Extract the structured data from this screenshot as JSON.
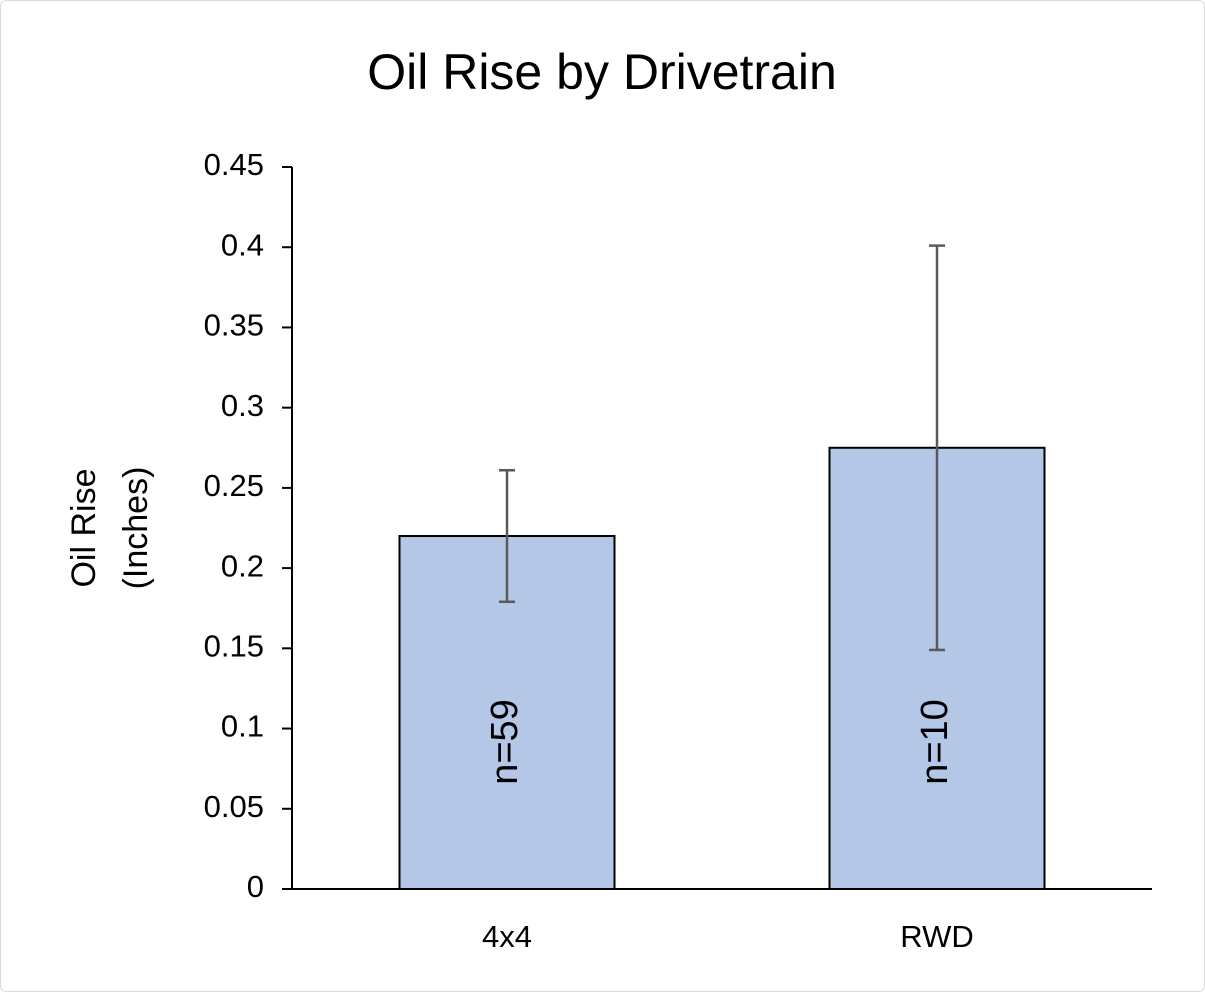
{
  "chart_data": {
    "type": "bar",
    "title": "Oil Rise by Drivetrain",
    "ylabel": [
      "Oil Rise",
      "(Inches)"
    ],
    "categories": [
      "4x4",
      "RWD"
    ],
    "values": [
      0.22,
      0.275
    ],
    "errors": [
      0.041,
      0.126
    ],
    "bar_labels": [
      "n=59",
      "n=10"
    ],
    "color": "#b4c7e7",
    "error_color": "#595959",
    "ylim": [
      0,
      0.45
    ],
    "yticks": [
      0,
      0.05,
      0.1,
      0.15,
      0.2,
      0.25,
      0.3,
      0.35,
      0.4,
      0.45
    ],
    "grid": false
  }
}
